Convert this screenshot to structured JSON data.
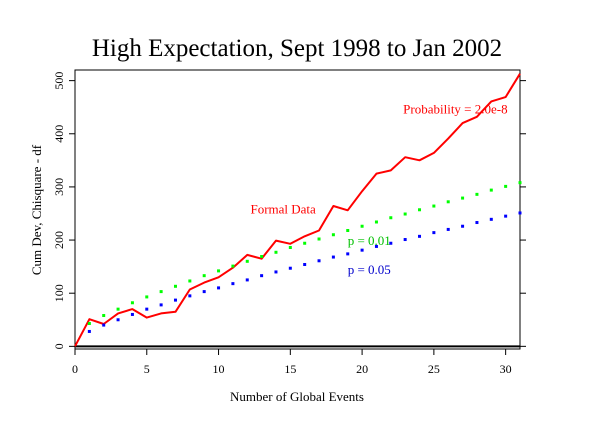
{
  "chart_data": {
    "type": "line",
    "title": "High Expectation, Sept 1998 to Jan 2002",
    "xlabel": "Number of Global Events",
    "ylabel": "Cum Dev, Chisquare - df",
    "xlim": [
      0,
      31
    ],
    "ylim": [
      -5,
      520
    ],
    "xticks": [
      0,
      5,
      10,
      15,
      20,
      25,
      30
    ],
    "yticks": [
      0,
      100,
      200,
      300,
      400,
      500
    ],
    "grid": false,
    "colors": {
      "formal": "#ff0000",
      "p01": "#00ff00",
      "p05": "#0000ff",
      "zero": "#000000"
    },
    "series": [
      {
        "name": "Formal Data",
        "style": "solid",
        "x": [
          0,
          1,
          2,
          3,
          4,
          5,
          6,
          7,
          8,
          9,
          10,
          11,
          12,
          13,
          14,
          15,
          16,
          17,
          18,
          19,
          20,
          21,
          22,
          23,
          24,
          25,
          26,
          27,
          28,
          29,
          30,
          31
        ],
        "y": [
          0,
          51,
          42,
          62,
          70,
          54,
          62,
          65,
          107,
          120,
          130,
          148,
          172,
          165,
          199,
          193,
          207,
          218,
          264,
          256,
          292,
          325,
          331,
          356,
          350,
          364,
          391,
          420,
          432,
          461,
          469,
          513
        ]
      },
      {
        "name": "p = 0.01",
        "style": "dotted",
        "x": [
          1,
          2,
          3,
          4,
          5,
          6,
          7,
          8,
          9,
          10,
          11,
          12,
          13,
          14,
          15,
          16,
          17,
          18,
          19,
          20,
          21,
          22,
          23,
          24,
          25,
          26,
          27,
          28,
          29,
          30,
          31
        ],
        "y": [
          43,
          58,
          70,
          82,
          93,
          103,
          113,
          123,
          133,
          142,
          151,
          160,
          169,
          177,
          186,
          194,
          202,
          210,
          218,
          226,
          234,
          242,
          249,
          257,
          264,
          272,
          279,
          286,
          294,
          301,
          308
        ]
      },
      {
        "name": "p = 0.05",
        "style": "dotted",
        "x": [
          1,
          2,
          3,
          4,
          5,
          6,
          7,
          8,
          9,
          10,
          11,
          12,
          13,
          14,
          15,
          16,
          17,
          18,
          19,
          20,
          21,
          22,
          23,
          24,
          25,
          26,
          27,
          28,
          29,
          30,
          31
        ],
        "y": [
          28,
          40,
          50,
          60,
          70,
          78,
          87,
          95,
          103,
          110,
          118,
          125,
          133,
          140,
          147,
          154,
          161,
          168,
          174,
          181,
          188,
          194,
          201,
          207,
          214,
          220,
          226,
          233,
          239,
          245,
          251
        ]
      }
    ],
    "annotations": [
      {
        "id": "probability",
        "text": "Probability = 2.0e-8",
        "x": 26.5,
        "y": 438,
        "color": "#ff0000"
      },
      {
        "id": "formal-data",
        "text": "Formal Data",
        "x": 14.5,
        "y": 250,
        "color": "#ff0000"
      },
      {
        "id": "p01",
        "text": "p = 0.01",
        "x": 20.5,
        "y": 191,
        "color": "#00c000"
      },
      {
        "id": "p05",
        "text": "p = 0.05",
        "x": 20.5,
        "y": 136,
        "color": "#0000cc"
      }
    ]
  }
}
